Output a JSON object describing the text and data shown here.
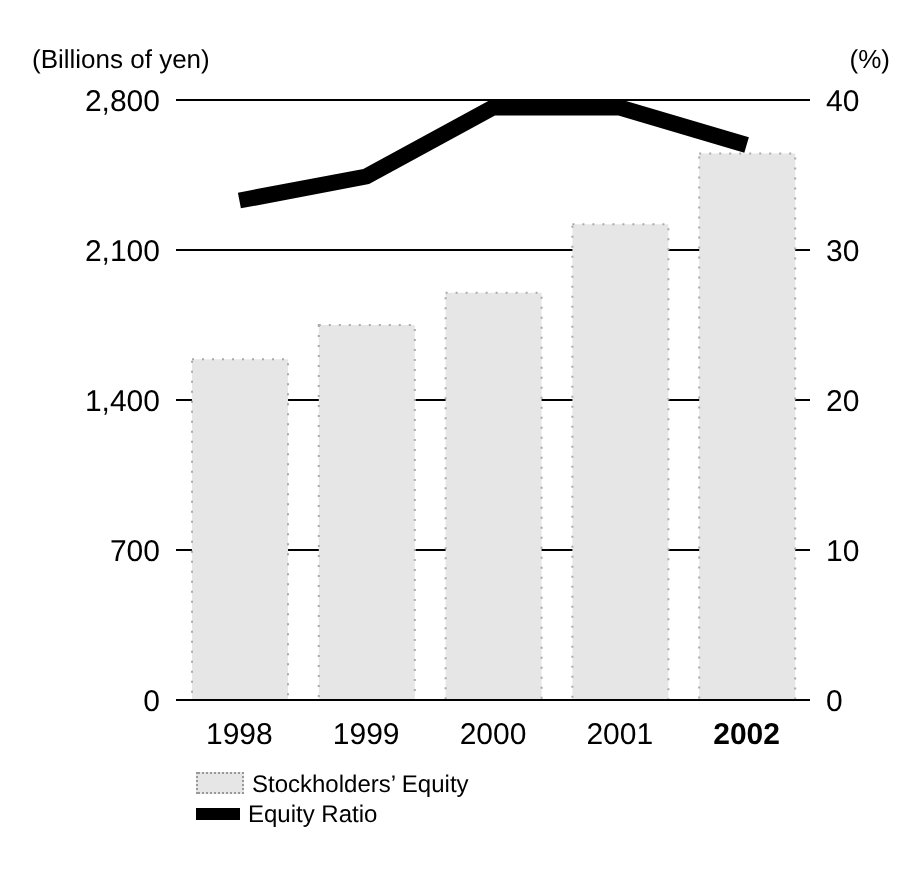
{
  "chart_data": {
    "type": "bar",
    "ylabel": "(Billions of yen)",
    "y2label": "(%)",
    "categories": [
      "1998",
      "1999",
      "2000",
      "2001",
      "2002"
    ],
    "series": [
      {
        "name": "Stockholders’ Equity",
        "color": "#e6e6e6",
        "values": [
          1590,
          1750,
          1900,
          2220,
          2550
        ]
      },
      {
        "name": "Equity Ratio",
        "type": "line",
        "axis": "y2",
        "color": "#000000",
        "values": [
          33.3,
          34.9,
          39.5,
          39.5,
          37.0
        ]
      }
    ],
    "ylim": [
      0,
      2800
    ],
    "yticks": [
      0,
      {
        "value": 700,
        "label": "700"
      },
      {
        "value": 1400,
        "label": "1,400"
      },
      {
        "value": 2100,
        "label": "2,100"
      },
      {
        "value": 2800,
        "label": "2,800"
      }
    ],
    "y2lim": [
      0,
      40
    ],
    "y2ticks": [
      0,
      10,
      20,
      30,
      40
    ],
    "grid": "y",
    "legend": "bottom",
    "marker": "none",
    "line_style": "solid"
  }
}
